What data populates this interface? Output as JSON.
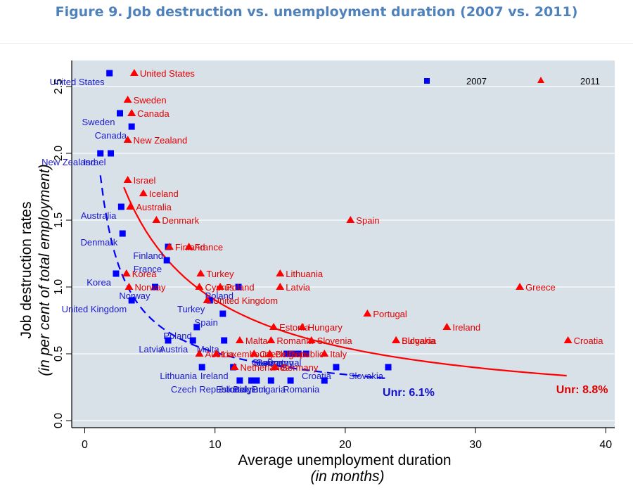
{
  "figure": {
    "title": "Figure 9. Job destruction vs. unemployment duration (2007 vs. 2011)"
  },
  "chart_data": {
    "type": "scatter",
    "title": "Figure 9. Job destruction vs. unemployment duration (2007 vs. 2011)",
    "xlabel": "Average unemployment duration",
    "xlabel_sub": "(in months)",
    "ylabel": "Job destruction rates",
    "ylabel_sub": "(in per cent of total employment)",
    "xlim": [
      -1,
      41
    ],
    "ylim": [
      -0.05,
      2.6
    ],
    "xticks": [
      0,
      10,
      20,
      30,
      40
    ],
    "yticks": [
      "0.0",
      "0.5",
      "1.0",
      "1.5",
      "2.0",
      "2.5"
    ],
    "grid": true,
    "legend": {
      "position": "top-right",
      "entries": [
        "2007",
        "2011"
      ]
    },
    "colors": {
      "2007": "#0000ff",
      "2011": "#ff0000",
      "plot_bg": "#d9e1e8",
      "title": "#4f81bd"
    },
    "series": [
      {
        "name": "2007",
        "marker": "square",
        "points": [
          {
            "label": "United States",
            "x": 1.9,
            "y": 2.6
          },
          {
            "label": "Sweden",
            "x": 2.7,
            "y": 2.3
          },
          {
            "label": "Canada",
            "x": 3.6,
            "y": 2.2
          },
          {
            "label": "New Zealand",
            "x": 1.2,
            "y": 2.0
          },
          {
            "label": "Israel",
            "x": 2.0,
            "y": 2.0
          },
          {
            "label": "Australia",
            "x": 2.8,
            "y": 1.6
          },
          {
            "label": "Denmark",
            "x": 2.9,
            "y": 1.4
          },
          {
            "label": "Finland",
            "x": 6.4,
            "y": 1.3
          },
          {
            "label": "France",
            "x": 6.3,
            "y": 1.2
          },
          {
            "label": "Korea",
            "x": 2.4,
            "y": 1.1
          },
          {
            "label": "Norway",
            "x": 5.4,
            "y": 1.0
          },
          {
            "label": "United Kingdom",
            "x": 3.6,
            "y": 0.9
          },
          {
            "label": "Poland",
            "x": 11.8,
            "y": 1.0
          },
          {
            "label": "Turkey",
            "x": 9.6,
            "y": 0.9
          },
          {
            "label": "Spain",
            "x": 10.6,
            "y": 0.8
          },
          {
            "label": "Poland",
            "x": 8.6,
            "y": 0.7
          },
          {
            "label": "Latvia",
            "x": 6.4,
            "y": 0.6
          },
          {
            "label": "Austria",
            "x": 8.3,
            "y": 0.6
          },
          {
            "label": "Malta",
            "x": 10.7,
            "y": 0.6
          },
          {
            "label": "Lithuania",
            "x": 9.0,
            "y": 0.4
          },
          {
            "label": "Ireland",
            "x": 11.4,
            "y": 0.4
          },
          {
            "label": "Czech Republic",
            "x": 11.9,
            "y": 0.3
          },
          {
            "label": "Estonia",
            "x": 12.8,
            "y": 0.3
          },
          {
            "label": "Italy",
            "x": 13.2,
            "y": 0.3
          },
          {
            "label": "Belgium",
            "x": 14.3,
            "y": 0.3
          },
          {
            "label": "Bulgaria",
            "x": 15.8,
            "y": 0.3
          },
          {
            "label": "Hungary",
            "x": 16.0,
            "y": 0.5
          },
          {
            "label": "Germany",
            "x": 16.4,
            "y": 0.5
          },
          {
            "label": "Portugal",
            "x": 17.0,
            "y": 0.5
          },
          {
            "label": "Greece",
            "x": 15.5,
            "y": 0.5
          },
          {
            "label": "Croatia",
            "x": 19.3,
            "y": 0.4
          },
          {
            "label": "Romania",
            "x": 18.4,
            "y": 0.3
          },
          {
            "label": "Slovakia",
            "x": 23.3,
            "y": 0.4
          }
        ]
      },
      {
        "name": "2011",
        "marker": "triangle",
        "points": [
          {
            "label": "United States",
            "x": 3.8,
            "y": 2.6
          },
          {
            "label": "Sweden",
            "x": 3.3,
            "y": 2.4
          },
          {
            "label": "Canada",
            "x": 3.6,
            "y": 2.3
          },
          {
            "label": "New Zealand",
            "x": 3.3,
            "y": 2.1
          },
          {
            "label": "Israel",
            "x": 3.3,
            "y": 1.8
          },
          {
            "label": "Iceland",
            "x": 4.5,
            "y": 1.7
          },
          {
            "label": "Australia",
            "x": 3.5,
            "y": 1.6
          },
          {
            "label": "Denmark",
            "x": 5.5,
            "y": 1.5
          },
          {
            "label": "Finland",
            "x": 6.5,
            "y": 1.3
          },
          {
            "label": "France",
            "x": 8.0,
            "y": 1.3
          },
          {
            "label": "Korea",
            "x": 3.2,
            "y": 1.1
          },
          {
            "label": "Norway",
            "x": 3.4,
            "y": 1.0
          },
          {
            "label": "Turkey",
            "x": 8.9,
            "y": 1.1
          },
          {
            "label": "Cyprus",
            "x": 8.8,
            "y": 1.0
          },
          {
            "label": "Poland",
            "x": 10.4,
            "y": 1.0
          },
          {
            "label": "United Kingdom",
            "x": 9.4,
            "y": 0.9
          },
          {
            "label": "Lithuania",
            "x": 15.0,
            "y": 1.1
          },
          {
            "label": "Latvia",
            "x": 15.0,
            "y": 1.0
          },
          {
            "label": "Spain",
            "x": 20.4,
            "y": 1.5
          },
          {
            "label": "Greece",
            "x": 33.4,
            "y": 1.0
          },
          {
            "label": "Portugal",
            "x": 21.7,
            "y": 0.8
          },
          {
            "label": "Estonia",
            "x": 14.5,
            "y": 0.7
          },
          {
            "label": "Hungary",
            "x": 16.7,
            "y": 0.7
          },
          {
            "label": "Ireland",
            "x": 27.8,
            "y": 0.7
          },
          {
            "label": "Malta",
            "x": 11.9,
            "y": 0.6
          },
          {
            "label": "Romania",
            "x": 14.3,
            "y": 0.6
          },
          {
            "label": "Slovenia",
            "x": 17.4,
            "y": 0.6
          },
          {
            "label": "Bulgaria",
            "x": 23.9,
            "y": 0.6
          },
          {
            "label": "Slovakia",
            "x": 23.9,
            "y": 0.6
          },
          {
            "label": "Croatia",
            "x": 37.1,
            "y": 0.6
          },
          {
            "label": "Austria",
            "x": 8.8,
            "y": 0.5
          },
          {
            "label": "Luxembourg",
            "x": 10.1,
            "y": 0.5
          },
          {
            "label": "Czech Republic",
            "x": 13.0,
            "y": 0.5
          },
          {
            "label": "Belgium",
            "x": 14.2,
            "y": 0.5
          },
          {
            "label": "Italy",
            "x": 18.4,
            "y": 0.5
          },
          {
            "label": "Netherlands",
            "x": 11.5,
            "y": 0.4
          },
          {
            "label": "Germany",
            "x": 14.6,
            "y": 0.4
          }
        ]
      }
    ],
    "fit_lines": [
      {
        "series": "2007",
        "style": "dashed",
        "label": "Unr: 6.1%",
        "x_range": [
          1.2,
          23.3
        ]
      },
      {
        "series": "2011",
        "style": "solid",
        "label": "Unr: 8.8%",
        "x_range": [
          3.0,
          37.0
        ]
      }
    ]
  }
}
